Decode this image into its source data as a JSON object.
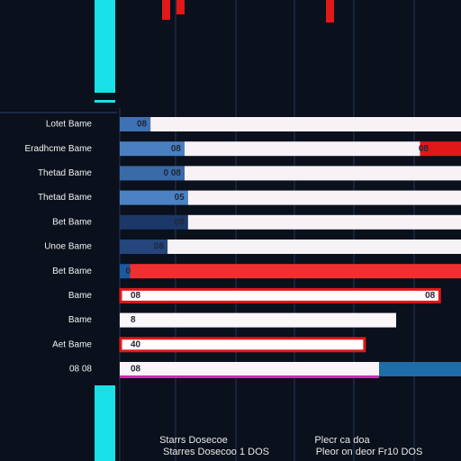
{
  "chart_data": {
    "type": "hbar-stacked",
    "categories": [
      "Lotet Bame",
      "Eradhcme Bame",
      "Thetad Bame",
      "Thetad Bame",
      "Bet Bame",
      "Unoe Bame",
      "Bet Bame",
      "Bame",
      "Bame",
      "Aet Bame",
      "08 08"
    ],
    "series": [
      {
        "values": [
          9,
          19,
          19,
          20,
          20,
          14,
          3,
          0,
          0,
          0,
          0
        ],
        "colors": [
          "#3f72b4",
          "#4a80c2",
          "#3a6aa8",
          "#4c82c4",
          "#1c3868",
          "#24467c",
          "#1a5aa0",
          "#ffffff",
          "#ffffff",
          "#ffffff",
          "#ffffff"
        ]
      },
      {
        "values": [
          91,
          69,
          81,
          80,
          80,
          86,
          0,
          94,
          81,
          72,
          76
        ],
        "colors": [
          "#f6f2f6",
          "#f6f2f6",
          "#f6f2f6",
          "#f6f2f6",
          "#f6f2f6",
          "#f6f2f6",
          "#f6f2f6",
          "#ffffff",
          "#fbf6fa",
          "#ffffff",
          "#fdf3fb"
        ]
      },
      {
        "values": [
          0,
          12,
          0,
          0,
          0,
          0,
          97,
          0,
          0,
          0,
          24
        ],
        "colors": [
          "#e01818",
          "#e01818",
          "#e01818",
          "#e01818",
          "#e01818",
          "#e01818",
          "#f03030",
          "#e01818",
          "#e01818",
          "#e01818",
          "#1f6ca8"
        ]
      }
    ],
    "bar_texts": [
      "08",
      "08",
      "0 08",
      "05",
      "08",
      "08",
      "0",
      "08",
      "8",
      "40",
      "08"
    ],
    "bar_end_texts": [
      "",
      "08",
      "",
      "",
      "",
      "",
      "",
      "08",
      "",
      "",
      ""
    ],
    "outlined": [
      false,
      false,
      false,
      false,
      false,
      false,
      false,
      true,
      false,
      true,
      false
    ],
    "xlim": [
      0,
      100
    ],
    "footer": [
      "Starrs Dosecoe",
      "Starres Dosecoo 1 DOS",
      "Plecr ca doa",
      "Pleor on deor Fr10 DOS"
    ]
  }
}
